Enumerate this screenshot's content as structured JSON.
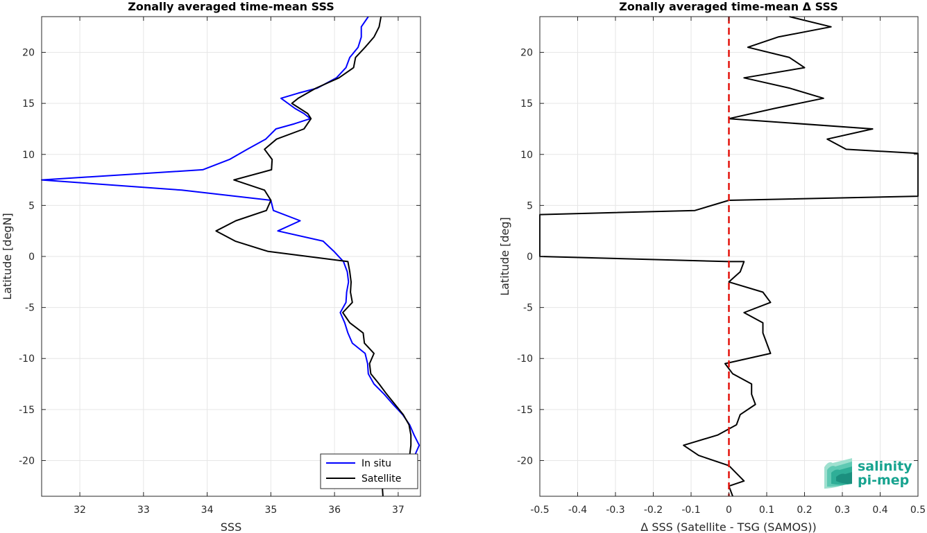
{
  "chart_data": [
    {
      "type": "line",
      "title": "Zonally averaged time-mean SSS",
      "xlabel": "SSS",
      "ylabel": "Latitude [degN]",
      "xlim": [
        31.4,
        37.35
      ],
      "ylim": [
        -23.5,
        23.5
      ],
      "xticks": [
        32,
        33,
        34,
        35,
        36,
        37
      ],
      "yticks": [
        -20,
        -15,
        -10,
        -5,
        0,
        5,
        10,
        15,
        20
      ],
      "grid": true,
      "legend": "bottom-right",
      "series": [
        {
          "name": "In situ",
          "color": "#0000ff",
          "points": [
            [
              36.53,
              23.5
            ],
            [
              36.42,
              22.5
            ],
            [
              36.42,
              21.5
            ],
            [
              36.37,
              20.5
            ],
            [
              36.24,
              19.5
            ],
            [
              36.18,
              18.5
            ],
            [
              36.03,
              17.5
            ],
            [
              35.73,
              16.5
            ],
            [
              35.43,
              16.0
            ],
            [
              35.16,
              15.5
            ],
            [
              35.38,
              14.5
            ],
            [
              35.52,
              14.0
            ],
            [
              35.62,
              13.5
            ],
            [
              35.37,
              13.0
            ],
            [
              35.08,
              12.5
            ],
            [
              34.92,
              11.5
            ],
            [
              34.63,
              10.5
            ],
            [
              34.35,
              9.5
            ],
            [
              33.93,
              8.5
            ],
            [
              31.4,
              7.5
            ],
            [
              33.6,
              6.5
            ],
            [
              35.0,
              5.5
            ],
            [
              35.04,
              4.5
            ],
            [
              35.46,
              3.5
            ],
            [
              35.11,
              2.5
            ],
            [
              35.82,
              1.5
            ],
            [
              35.99,
              0.5
            ],
            [
              36.14,
              -0.5
            ],
            [
              36.2,
              -1.5
            ],
            [
              36.22,
              -2.5
            ],
            [
              36.19,
              -3.5
            ],
            [
              36.18,
              -4.5
            ],
            [
              36.09,
              -5.5
            ],
            [
              36.16,
              -6.5
            ],
            [
              36.21,
              -7.5
            ],
            [
              36.28,
              -8.5
            ],
            [
              36.48,
              -9.5
            ],
            [
              36.52,
              -10.5
            ],
            [
              36.53,
              -11.5
            ],
            [
              36.62,
              -12.5
            ],
            [
              36.78,
              -13.5
            ],
            [
              36.92,
              -14.5
            ],
            [
              37.07,
              -15.5
            ],
            [
              37.18,
              -16.5
            ],
            [
              37.25,
              -17.5
            ],
            [
              37.33,
              -18.5
            ],
            [
              37.26,
              -19.5
            ]
          ]
        },
        {
          "name": "Satellite",
          "color": "#000000",
          "points": [
            [
              36.73,
              23.5
            ],
            [
              36.7,
              22.5
            ],
            [
              36.62,
              21.5
            ],
            [
              36.48,
              20.5
            ],
            [
              36.33,
              19.5
            ],
            [
              36.3,
              18.5
            ],
            [
              36.07,
              17.5
            ],
            [
              35.71,
              16.5
            ],
            [
              35.43,
              15.5
            ],
            [
              35.33,
              15.0
            ],
            [
              35.58,
              14.0
            ],
            [
              35.63,
              13.5
            ],
            [
              35.52,
              12.5
            ],
            [
              35.09,
              11.5
            ],
            [
              34.9,
              10.5
            ],
            [
              35.02,
              9.5
            ],
            [
              35.01,
              8.5
            ],
            [
              34.42,
              7.5
            ],
            [
              34.9,
              6.5
            ],
            [
              35.0,
              5.5
            ],
            [
              34.93,
              4.5
            ],
            [
              34.45,
              3.5
            ],
            [
              34.14,
              2.5
            ],
            [
              34.44,
              1.5
            ],
            [
              34.95,
              0.5
            ],
            [
              36.21,
              -0.5
            ],
            [
              36.24,
              -1.5
            ],
            [
              36.26,
              -2.5
            ],
            [
              36.25,
              -3.5
            ],
            [
              36.28,
              -4.5
            ],
            [
              36.13,
              -5.5
            ],
            [
              36.24,
              -6.5
            ],
            [
              36.45,
              -7.5
            ],
            [
              36.47,
              -8.5
            ],
            [
              36.62,
              -9.5
            ],
            [
              36.55,
              -10.5
            ],
            [
              36.57,
              -11.5
            ],
            [
              36.7,
              -12.5
            ],
            [
              36.82,
              -13.5
            ],
            [
              36.95,
              -14.5
            ],
            [
              37.08,
              -15.5
            ],
            [
              37.17,
              -16.5
            ],
            [
              37.2,
              -17.5
            ],
            [
              37.2,
              -18.5
            ],
            [
              37.18,
              -19.5
            ],
            [
              36.75,
              -22.5
            ],
            [
              36.76,
              -23.5
            ]
          ]
        }
      ]
    },
    {
      "type": "line",
      "title": "Zonally averaged time-mean Δ SSS",
      "xlabel": "Δ SSS (Satellite - TSG (SAMOS))",
      "ylabel": "Latitude [deg]",
      "xlim": [
        -0.5,
        0.5
      ],
      "ylim": [
        -23.5,
        23.5
      ],
      "xticks": [
        -0.5,
        -0.4,
        -0.3,
        -0.2,
        -0.1,
        0,
        0.1,
        0.2,
        0.3,
        0.4,
        0.5
      ],
      "yticks": [
        -20,
        -15,
        -10,
        -5,
        0,
        5,
        10,
        15,
        20
      ],
      "grid": true,
      "reference_line": {
        "x": 0,
        "color": "#e3120b",
        "style": "dashed"
      },
      "series": [
        {
          "name": "",
          "color": "#000000",
          "points": [
            [
              0.16,
              23.5
            ],
            [
              0.27,
              22.5
            ],
            [
              0.13,
              21.5
            ],
            [
              0.05,
              20.5
            ],
            [
              0.16,
              19.5
            ],
            [
              0.2,
              18.5
            ],
            [
              0.04,
              17.5
            ],
            [
              0.16,
              16.5
            ],
            [
              0.25,
              15.5
            ],
            [
              0.12,
              14.5
            ],
            [
              0.0,
              13.5
            ],
            [
              0.38,
              12.5
            ],
            [
              0.26,
              11.5
            ],
            [
              0.31,
              10.5
            ],
            [
              0.5,
              10.1
            ],
            [
              0.5,
              5.9
            ],
            [
              0.0,
              5.5
            ],
            [
              -0.09,
              4.5
            ],
            [
              -0.5,
              4.1
            ],
            [
              -0.5,
              0.0
            ],
            [
              0.0,
              -0.5
            ],
            [
              0.04,
              -0.5
            ],
            [
              0.03,
              -1.5
            ],
            [
              0.0,
              -2.5
            ],
            [
              0.09,
              -3.5
            ],
            [
              0.11,
              -4.5
            ],
            [
              0.04,
              -5.5
            ],
            [
              0.09,
              -6.5
            ],
            [
              0.09,
              -7.5
            ],
            [
              0.1,
              -8.5
            ],
            [
              0.11,
              -9.5
            ],
            [
              -0.01,
              -10.5
            ],
            [
              0.01,
              -11.5
            ],
            [
              0.06,
              -12.5
            ],
            [
              0.06,
              -13.5
            ],
            [
              0.07,
              -14.5
            ],
            [
              0.03,
              -15.5
            ],
            [
              0.02,
              -16.5
            ],
            [
              -0.03,
              -17.5
            ],
            [
              -0.12,
              -18.5
            ],
            [
              -0.08,
              -19.5
            ],
            [
              0.0,
              -20.5
            ],
            [
              0.04,
              -22.0
            ],
            [
              0.0,
              -22.5
            ],
            [
              0.01,
              -23.5
            ]
          ]
        }
      ]
    }
  ],
  "logo": {
    "line1": "salinity",
    "line2": "pi-mep",
    "color": "#17a38f"
  }
}
